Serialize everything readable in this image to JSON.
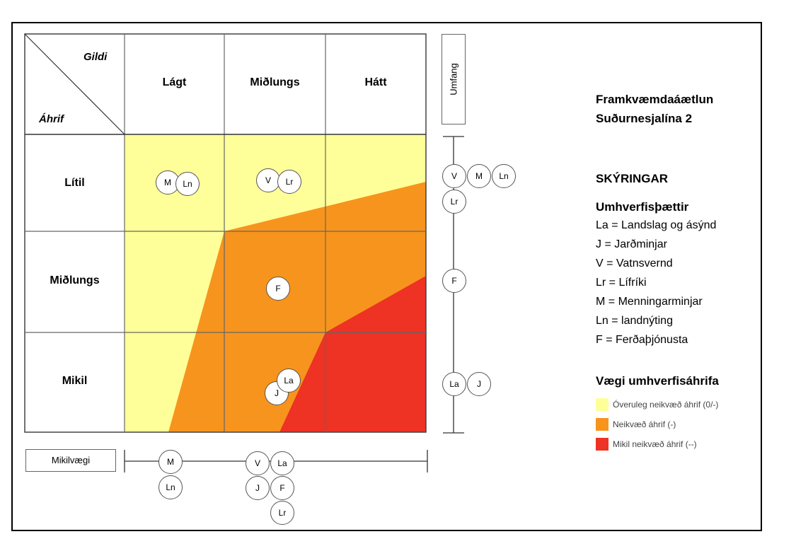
{
  "matrix": {
    "corner_top": "Gildi",
    "corner_bottom": "Áhrif",
    "columns": [
      "Lágt",
      "Miðlungs",
      "Hátt"
    ],
    "rows": [
      "Lítil",
      "Miðlungs",
      "Mikil"
    ]
  },
  "markers": {
    "row_litil_col_lagt": [
      "M",
      "Ln"
    ],
    "row_litil_col_midlungs": [
      "V",
      "Lr"
    ],
    "row_midlungs_col_midlungs": [
      "F"
    ],
    "row_mikil_col_midlungs": [
      "La",
      "J"
    ]
  },
  "umfang": {
    "label": "Umfang",
    "groups": [
      [
        "V",
        "M",
        "Ln"
      ],
      [
        "Lr"
      ],
      [
        "F"
      ],
      [
        "La",
        "J"
      ]
    ]
  },
  "mikilvaegi": {
    "label": "Mikilvægi",
    "groups": [
      [
        "M"
      ],
      [
        "Ln"
      ],
      [
        "V",
        "La"
      ],
      [
        "J",
        "F"
      ],
      [
        "Lr"
      ]
    ]
  },
  "title": {
    "line1": "Framkvæmdaáætlun",
    "line2": "Suðurnesjalína  2"
  },
  "legend": {
    "heading": "SKÝRINGAR",
    "factors_heading": "Umhverfisþættir",
    "factors": [
      "La = Landslag og ásýnd",
      "J = Jarðminjar",
      "V = Vatnsvernd",
      "Lr = Lífríki",
      "M = Menningarminjar",
      "Ln = landnýting",
      "F = Ferðaþjónusta"
    ],
    "weight_heading": "Vægi umhverfisáhrifa",
    "weights": [
      {
        "label": "Óveruleg neikvæð áhrif (0/-)",
        "color": "#ffff99"
      },
      {
        "label": "Neikvæð áhrif (-)",
        "color": "#f7941d"
      },
      {
        "label": "Mikil neikvæð áhrif (--)",
        "color": "#ee3224"
      }
    ]
  },
  "colors": {
    "yellow": "#ffff99",
    "orange": "#f7941d",
    "red": "#ee3224",
    "grid": "#666666"
  }
}
